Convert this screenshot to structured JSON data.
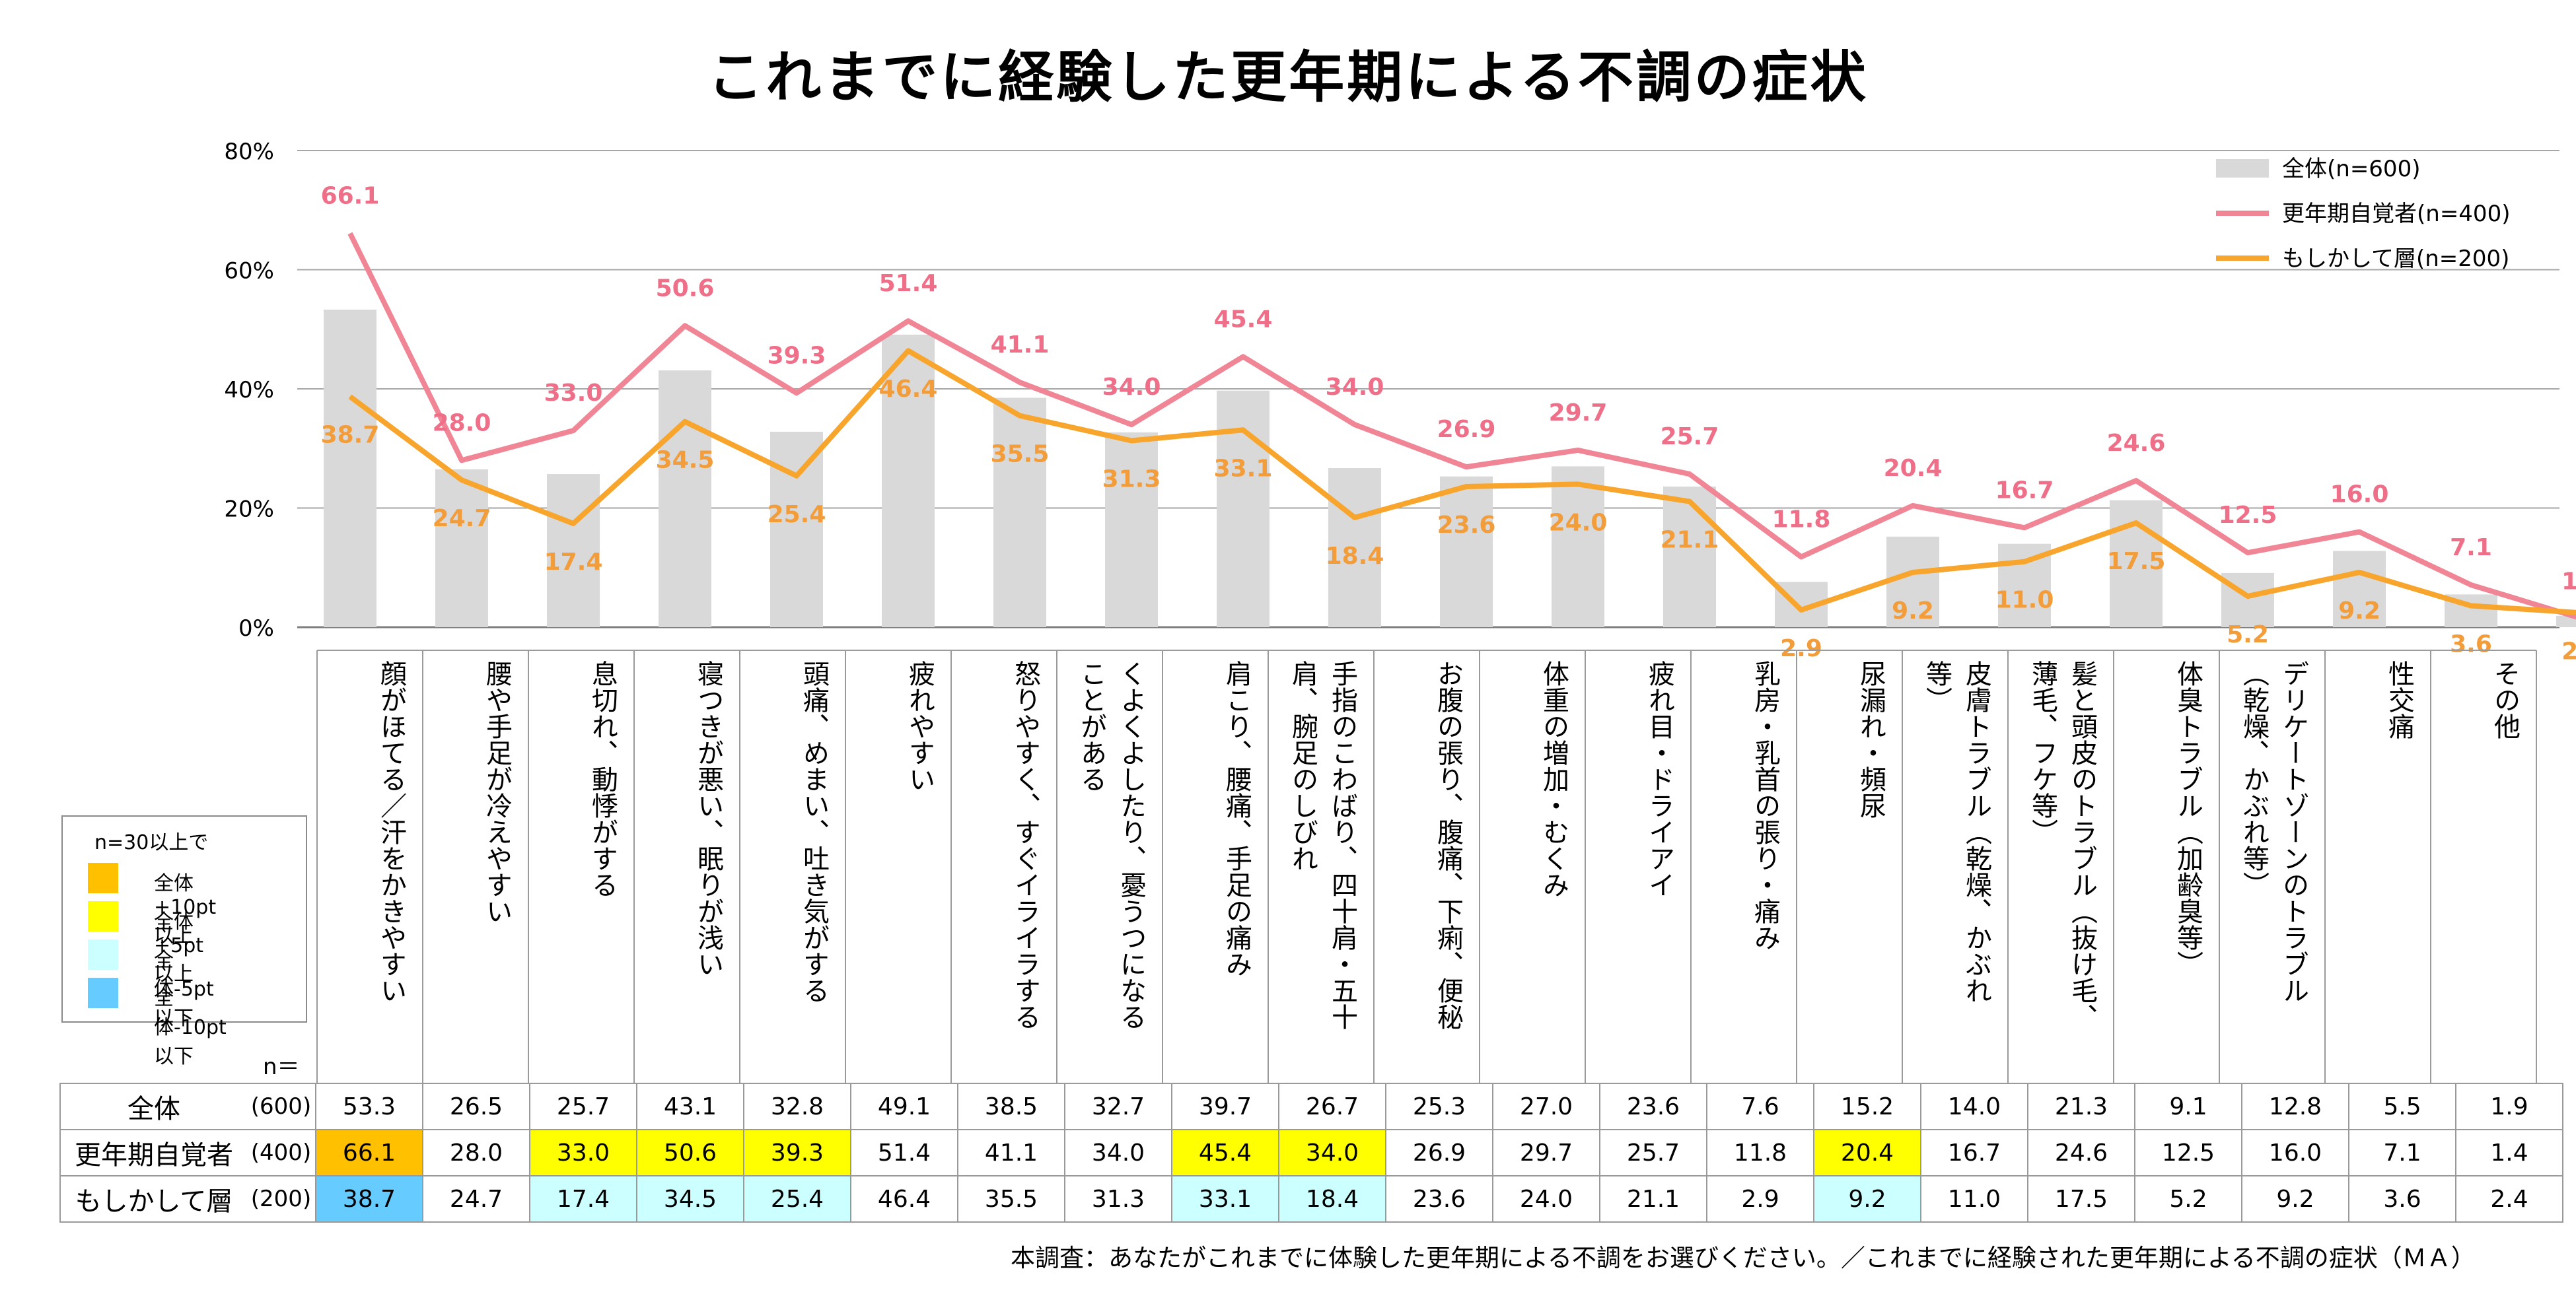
{
  "title": "これまでに経験した更年期による不調の症状",
  "colors": {
    "bar": "#d9d9d9",
    "line_kounenki": "#ef8595",
    "line_moshika": "#f7a52c",
    "label_kounenki": "#ef6e88",
    "label_moshika": "#f29c3a",
    "hl_plus10": "#ffc000",
    "hl_plus5": "#ffff00",
    "hl_minus5": "#ccffff",
    "hl_minus10": "#66ccff"
  },
  "chart_data": {
    "type": "bar",
    "title": "これまでに経験した更年期による不調の症状",
    "ylim": [
      0,
      80
    ],
    "yticks": [
      "0%",
      "20%",
      "40%",
      "60%",
      "80%"
    ],
    "categories": [
      "顔がほてる／汗をかきやすい",
      "腰や手足が冷えやすい",
      "息切れ、動悸がする",
      "寝つきが悪い、眠りが浅い",
      "頭痛、めまい、吐き気がする",
      "疲れやすい",
      "怒りやすく、すぐイライラする",
      "くよくよしたり、憂うつになることがある",
      "肩こり、腰痛、手足の痛み",
      "手指のこわばり、四十肩・五十肩、腕足のしびれ",
      "お腹の張り、腹痛、下痢、便秘",
      "体重の増加・むくみ",
      "疲れ目・ドライアイ",
      "乳房・乳首の張り・痛み",
      "尿漏れ・頻尿",
      "皮膚トラブル（乾燥、かぶれ等）",
      "髪と頭皮のトラブル（抜け毛、薄毛、フケ等）",
      "体臭トラブル（加齢臭等）",
      "デリケートゾーンのトラブル（乾燥、かぶれ等）",
      "性交痛",
      "その他"
    ],
    "category_lines": [
      [
        "顔がほてる／汗をかきやすい"
      ],
      [
        "腰や手足が冷えやすい"
      ],
      [
        "息切れ、動悸がする"
      ],
      [
        "寝つきが悪い、眠りが浅い"
      ],
      [
        "頭痛、めまい、吐き気がする"
      ],
      [
        "疲れやすい"
      ],
      [
        "怒りやすく、すぐイライラする"
      ],
      [
        "くよくよしたり、憂うつになる",
        "ことがある"
      ],
      [
        "肩こり、腰痛、手足の痛み"
      ],
      [
        "手指のこわばり、四十肩・五十",
        "肩、腕足のしびれ"
      ],
      [
        "お腹の張り、腹痛、下痢、便秘"
      ],
      [
        "体重の増加・むくみ"
      ],
      [
        "疲れ目・ドライアイ"
      ],
      [
        "乳房・乳首の張り・痛み"
      ],
      [
        "尿漏れ・頻尿"
      ],
      [
        "皮膚トラブル（乾燥、かぶれ",
        "等）"
      ],
      [
        "髪と頭皮のトラブル（抜け毛、",
        "薄毛、フケ等）"
      ],
      [
        "体臭トラブル（加齢臭等）"
      ],
      [
        "デリケートゾーンのトラブル",
        "（乾燥、かぶれ等）"
      ],
      [
        "性交痛"
      ],
      [
        "その他"
      ]
    ],
    "series": [
      {
        "name": "全体(n=600)",
        "kind": "bar",
        "values": [
          53.3,
          26.5,
          25.7,
          43.1,
          32.8,
          49.1,
          38.5,
          32.7,
          39.7,
          26.7,
          25.3,
          27.0,
          23.6,
          7.6,
          15.2,
          14.0,
          21.3,
          9.1,
          12.8,
          5.5,
          1.9
        ]
      },
      {
        "name": "更年期自覚者(n=400)",
        "kind": "line",
        "values": [
          66.1,
          28.0,
          33.0,
          50.6,
          39.3,
          51.4,
          41.1,
          34.0,
          45.4,
          34.0,
          26.9,
          29.7,
          25.7,
          11.8,
          20.4,
          16.7,
          24.6,
          12.5,
          16.0,
          7.1,
          1.4
        ]
      },
      {
        "name": "もしかして層(n=200)",
        "kind": "line",
        "values": [
          38.7,
          24.7,
          17.4,
          34.5,
          25.4,
          46.4,
          35.5,
          31.3,
          33.1,
          18.4,
          23.6,
          24.0,
          21.1,
          2.9,
          9.2,
          11.0,
          17.5,
          5.2,
          9.2,
          3.6,
          2.4
        ]
      }
    ],
    "legend": [
      "全体(n=600)",
      "更年期自覚者(n=400)",
      "もしかして層(n=200)"
    ],
    "legend_position": "top-right"
  },
  "table": {
    "n_header": "n＝",
    "rows": [
      {
        "label": "全体",
        "n": "(600)",
        "values": [
          "53.3",
          "26.5",
          "25.7",
          "43.1",
          "32.8",
          "49.1",
          "38.5",
          "32.7",
          "39.7",
          "26.7",
          "25.3",
          "27.0",
          "23.6",
          "7.6",
          "15.2",
          "14.0",
          "21.3",
          "9.1",
          "12.8",
          "5.5",
          "1.9"
        ],
        "hl": [
          "",
          "",
          "",
          "",
          "",
          "",
          "",
          "",
          "",
          "",
          "",
          "",
          "",
          "",
          "",
          "",
          "",
          "",
          "",
          "",
          ""
        ]
      },
      {
        "label": "更年期自覚者",
        "n": "(400)",
        "values": [
          "66.1",
          "28.0",
          "33.0",
          "50.6",
          "39.3",
          "51.4",
          "41.1",
          "34.0",
          "45.4",
          "34.0",
          "26.9",
          "29.7",
          "25.7",
          "11.8",
          "20.4",
          "16.7",
          "24.6",
          "12.5",
          "16.0",
          "7.1",
          "1.4"
        ],
        "hl": [
          "p10",
          "",
          "p5",
          "p5",
          "p5",
          "",
          "",
          "",
          "p5",
          "p5",
          "",
          "",
          "",
          "",
          "p5",
          "",
          "",
          "",
          "",
          "",
          ""
        ]
      },
      {
        "label": "もしかして層",
        "n": "(200)",
        "values": [
          "38.7",
          "24.7",
          "17.4",
          "34.5",
          "25.4",
          "46.4",
          "35.5",
          "31.3",
          "33.1",
          "18.4",
          "23.6",
          "24.0",
          "21.1",
          "2.9",
          "9.2",
          "11.0",
          "17.5",
          "5.2",
          "9.2",
          "3.6",
          "2.4"
        ],
        "hl": [
          "m10",
          "",
          "m5",
          "m5",
          "m5",
          "",
          "",
          "",
          "m5",
          "m5",
          "",
          "",
          "",
          "",
          "m5",
          "",
          "",
          "",
          "",
          "",
          ""
        ]
      }
    ]
  },
  "highlight_legend": {
    "title": "n=30以上で",
    "items": [
      {
        "key": "p10",
        "label": "全体+10pt以上"
      },
      {
        "key": "p5",
        "label": "全体+5pt以上"
      },
      {
        "key": "m5",
        "label": "全体-5pt以下"
      },
      {
        "key": "m10",
        "label": "全体-10pt以下"
      }
    ]
  },
  "footnote": "本調査：あなたがこれまでに体験した更年期による不調をお選びください。／これまでに経験された更年期による不調の症状（ＭＡ）"
}
